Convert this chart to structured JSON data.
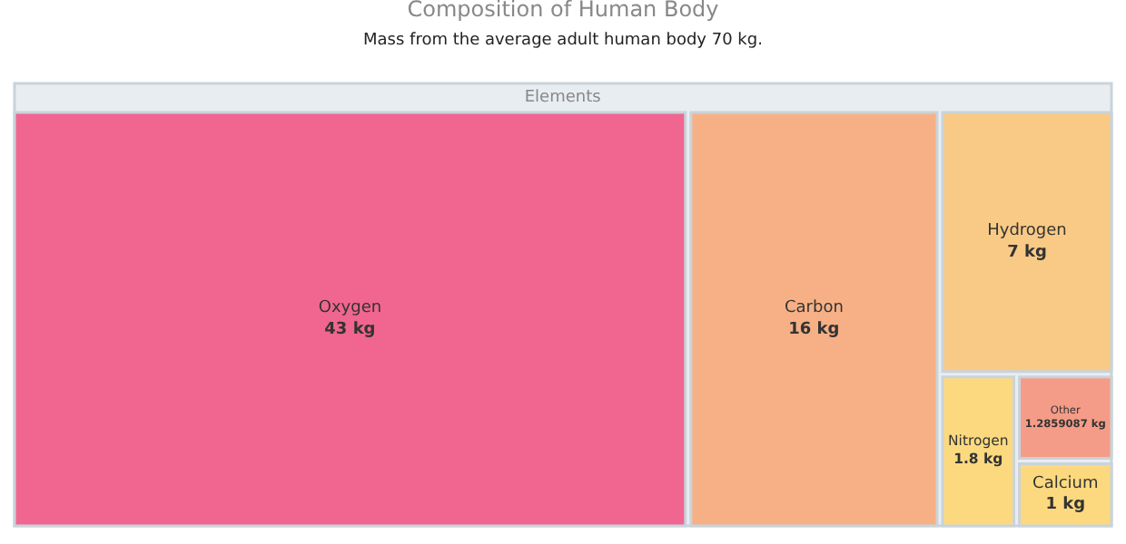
{
  "chart_data": {
    "type": "other",
    "title": "Composition of Human Body",
    "subtitle": "Mass from the average adult human body 70 kg.",
    "xlabel": "Elements",
    "categories": [
      "Oxygen",
      "Carbon",
      "Hydrogen",
      "Nitrogen",
      "Other",
      "Calcium"
    ],
    "values": [
      43,
      16,
      7,
      1.8,
      1.2859087,
      1
    ],
    "value_labels": [
      "43 kg",
      "16 kg",
      "7 kg",
      "1.8 kg",
      "1.2859087 kg",
      "1 kg"
    ],
    "colors": [
      "#f06690",
      "#f7b086",
      "#f9ca85",
      "#fcd97f",
      "#f49c88",
      "#fcd97f"
    ]
  }
}
